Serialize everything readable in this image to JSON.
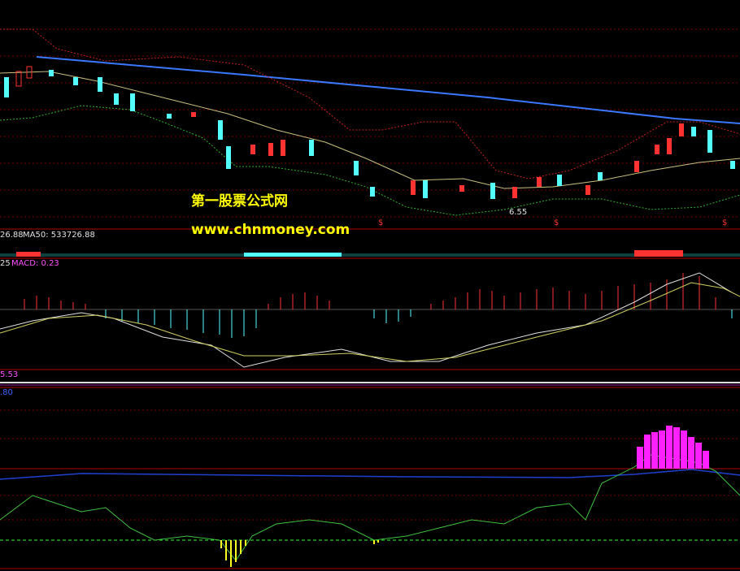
{
  "panels": {
    "main": {
      "watermark_title": "第一股票公式网",
      "watermark_url": "www.chnmoney.com",
      "low_label": "6.55",
      "markers": [
        "$",
        "$",
        "$"
      ]
    },
    "volume": {
      "label_value": "26.88",
      "label_ma": "MA50: 533726.88"
    },
    "macd": {
      "label_value": "25",
      "label_macd": "MACD: 0.23"
    },
    "indicator1": {
      "label": "5.53"
    },
    "indicator2": {
      "label": ".80"
    }
  }
}
